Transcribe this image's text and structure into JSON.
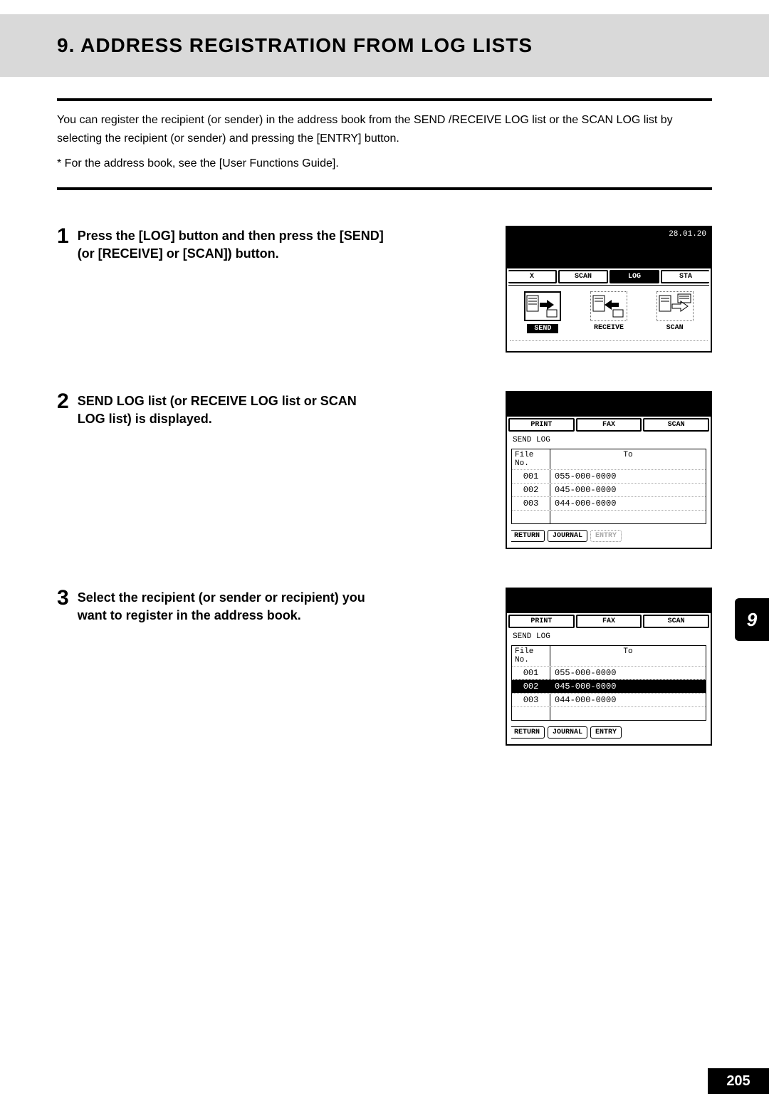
{
  "header": {
    "title": "9. ADDRESS REGISTRATION FROM LOG LISTS"
  },
  "intro": {
    "text": "You can register the recipient (or sender) in the address book from the SEND /RECEIVE LOG list or the SCAN LOG list by selecting the recipient (or sender) and pressing the [ENTRY] button.",
    "footnote": "*  For the address book, see the [User Functions Guide]."
  },
  "steps": [
    {
      "num": "1",
      "text": "Press the [LOG] button and then press the [SEND] (or [RECEIVE] or [SCAN]) button."
    },
    {
      "num": "2",
      "text": "SEND LOG list (or RECEIVE LOG list or SCAN LOG list) is displayed."
    },
    {
      "num": "3",
      "text": "Select the recipient (or sender or recipient) you want to register in the address book."
    }
  ],
  "lcd1": {
    "date": "28.01.20",
    "top_tabs": [
      {
        "label": "X",
        "partial": "l"
      },
      {
        "label": "SCAN"
      },
      {
        "label": "LOG",
        "selected": true
      },
      {
        "label": "STA",
        "partial": "r"
      }
    ],
    "modes": [
      {
        "label": "SEND",
        "selected": true
      },
      {
        "label": "RECEIVE"
      },
      {
        "label": "SCAN"
      }
    ]
  },
  "lcd_log": {
    "top_tabs": [
      {
        "label": "PRINT"
      },
      {
        "label": "FAX"
      },
      {
        "label": "SCAN"
      }
    ],
    "subheader": "SEND LOG",
    "columns": {
      "c1": "File No.",
      "c2": "To"
    },
    "rows": [
      {
        "file": "001",
        "to": "055-000-0000"
      },
      {
        "file": "002",
        "to": "045-000-0000"
      },
      {
        "file": "003",
        "to": "044-000-0000"
      }
    ],
    "btns_step2": [
      {
        "label": "RETURN",
        "cls": "ret"
      },
      {
        "label": "JOURNAL"
      },
      {
        "label": "ENTRY",
        "cls": "dis"
      }
    ],
    "btns_step3": [
      {
        "label": "RETURN",
        "cls": "ret"
      },
      {
        "label": "JOURNAL"
      },
      {
        "label": "ENTRY"
      }
    ],
    "selected_row_step3": 1
  },
  "side": {
    "chapter": "9",
    "page": "205"
  },
  "colors": {
    "band": "#d9d9d9",
    "ink": "#000000"
  }
}
